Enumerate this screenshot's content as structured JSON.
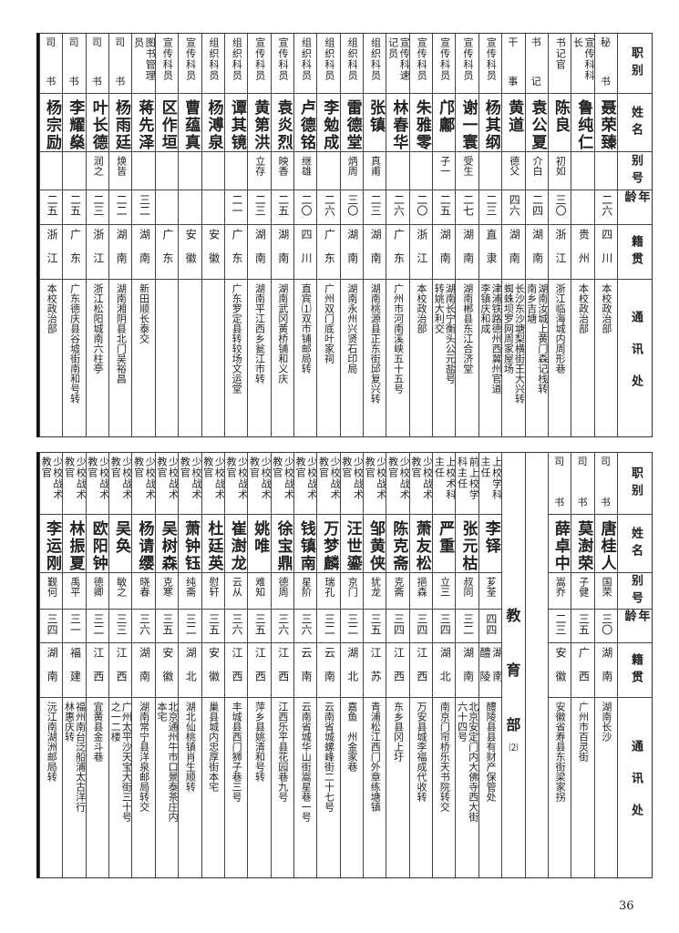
{
  "header": [
    "职别",
    "姓名",
    "别号",
    "年龄",
    "籍贯",
    "通讯处"
  ],
  "top": {
    "columns": [
      {
        "role": [
          "秘",
          "书"
        ],
        "name": "聂荣臻",
        "alias": "",
        "age": "二六",
        "origin": "四川",
        "address": [
          "本校政治部"
        ]
      },
      {
        "role": [
          "宣传科科",
          "长"
        ],
        "name": "鲁纯仁",
        "alias": "",
        "age": "",
        "origin": "贵州",
        "address": [
          "本校政治部"
        ]
      },
      {
        "role": [
          "书记官"
        ],
        "name": "陈良",
        "alias": "初如",
        "age": "三〇",
        "origin": "浙江",
        "address": [
          "浙江临海城内周形巷"
        ]
      },
      {
        "role": [
          "书",
          "记"
        ],
        "name": "袁公夏",
        "alias": "介白",
        "age": "二四",
        "origin": "湖南",
        "address": [
          "湖南汝城上黄门森记栈转",
          "南乡吉塘"
        ]
      },
      {
        "role": [
          "干",
          "事"
        ],
        "name": "黄道",
        "alias": "德父",
        "age": "四六",
        "origin": "湖南",
        "address": [
          "长沙东沙塘梨横街王大兴转",
          "蜘蛛坝罗网周家屋场"
        ]
      },
      {
        "role": [
          "宣传科员"
        ],
        "name": "杨其纲",
        "alias": "",
        "age": "二三",
        "origin": "直隶",
        "address": [
          "津浦铁路德州西冀州官道",
          "李镇庆和成"
        ]
      },
      {
        "role": [
          "宣传科员"
        ],
        "name": "谢一寰",
        "alias": "受生",
        "age": "二七",
        "origin": "湖南",
        "address": [
          "湖南郴县东江合济堂"
        ]
      },
      {
        "role": [
          "宣传科员"
        ],
        "name": "邝鄘",
        "alias": "子一",
        "age": "二五",
        "origin": "湖南",
        "address": [
          "湖南长宁衡头公元盐号",
          "转姚大利交"
        ]
      },
      {
        "role": [
          "宣传科员"
        ],
        "name": "朱雅零",
        "alias": "",
        "age": "二〇",
        "origin": "浙江",
        "address": [
          "本校政治部"
        ]
      },
      {
        "role": [
          "宣传科速",
          "记员"
        ],
        "name": "林春华",
        "alias": "",
        "age": "二六",
        "origin": "广东",
        "address": [
          "广州市河南溪峡五十五号"
        ]
      },
      {
        "role": [
          "组织科员"
        ],
        "name": "张镇",
        "alias": "真甫",
        "age": "二三",
        "origin": "湖南",
        "address": [
          "湖南桃源县正东街邱复兴转"
        ]
      },
      {
        "role": [
          "组织科员"
        ],
        "name": "雷德堂",
        "alias": "炳周",
        "age": "三〇",
        "origin": "湖南",
        "address": [
          "湖南永州兴贤石印局"
        ]
      },
      {
        "role": [
          "组织科员"
        ],
        "name": "李勉成",
        "alias": "",
        "age": "二六",
        "origin": "广东",
        "address": [
          "广州双门底叶家祠"
        ]
      },
      {
        "role": [
          "组织科员"
        ],
        "name": "卢德铭",
        "alias": "继雄",
        "age": "二〇",
        "origin": "四川",
        "address": [
          "直宾⑴双市铺邮局转"
        ]
      },
      {
        "role": [
          "宣传科员"
        ],
        "name": "袁炎烈",
        "alias": "映香",
        "age": "二五",
        "origin": "湖南",
        "address": [
          "湖南武冈黄桥铺和义庆"
        ]
      },
      {
        "role": [
          "宣传科员"
        ],
        "name": "黄第洪",
        "alias": "立存",
        "age": "二三",
        "origin": "湖南",
        "address": [
          "湖南平江西乡瓮江市转"
        ]
      },
      {
        "role": [
          "组织科员"
        ],
        "name": "谭其镜",
        "alias": "",
        "age": "二一",
        "origin": "广东",
        "address": [
          "广东罗定县转较场文运堂"
        ]
      },
      {
        "role": [
          "组织科员"
        ],
        "name": "杨溥泉",
        "alias": "",
        "age": "",
        "origin": "安徽",
        "address": []
      },
      {
        "role": [
          "宣传科员"
        ],
        "name": "曹蕴真",
        "alias": "",
        "age": "",
        "origin": "安徽",
        "address": []
      },
      {
        "role": [
          "宣传科员"
        ],
        "name": "区作垣",
        "alias": "",
        "age": "",
        "origin": "广东",
        "address": []
      },
      {
        "role": [
          "图书管理",
          "员"
        ],
        "name": "蒋先泽",
        "alias": "",
        "age": "三二",
        "origin": "湖南",
        "address": [
          "新田顺长泰交"
        ]
      },
      {
        "role": [
          "司",
          "书"
        ],
        "name": "杨雨廷",
        "alias": "焕皆",
        "age": "二二",
        "origin": "湖南",
        "address": [
          "湖南湘阴县北门吴裕昌"
        ]
      },
      {
        "role": [
          "司",
          "书"
        ],
        "name": "叶长德",
        "alias": "润之",
        "age": "二三",
        "origin": "浙江",
        "address": [
          "浙江松阳城南六柱亭"
        ]
      },
      {
        "role": [
          "司",
          "书"
        ],
        "name": "李耀燊",
        "alias": "",
        "age": "二五",
        "origin": "广东",
        "address": [
          "广东德庆县谷墟街南和号转"
        ]
      },
      {
        "role": [
          "司",
          "书"
        ],
        "name": "杨宗励",
        "alias": "",
        "age": "二五",
        "origin": "浙江",
        "address": [
          "本校政治部"
        ]
      }
    ]
  },
  "bottom": {
    "clerks": [
      {
        "role": [
          "司",
          "书"
        ],
        "name": "唐桂人",
        "alias": "国荣",
        "age": "三〇",
        "origin": "湖南",
        "address": [
          "湖南长沙"
        ]
      },
      {
        "role": [
          "司",
          "书"
        ],
        "name": "莫澍荣",
        "alias": "子健",
        "age": "三五",
        "origin": "广西",
        "address": [
          "广州市百灵街"
        ]
      },
      {
        "role": [
          "司",
          "书"
        ],
        "name": "薛卓中",
        "alias": "嵩乔",
        "age": "二三",
        "origin": "安徽",
        "address": [
          "安徽省寿县东街梁家拐"
        ]
      }
    ],
    "section_label": [
      "教",
      "育",
      "部"
    ],
    "section_note": "⑵",
    "columns": [
      {
        "role": [
          "上校学科",
          "主任"
        ],
        "name": "李铎",
        "alias": "芗荃",
        "age": "四四",
        "origin": "湖南醴陵",
        "address": [
          "醴陵县县有财产保管处"
        ]
      },
      {
        "role": [
          "前上校学",
          "科主任"
        ],
        "name": "张元枯",
        "alias": "叔同",
        "age": "三二",
        "origin": "湖南",
        "address": [
          "北京安定门内大佛寺西大街",
          "六十四号"
        ]
      },
      {
        "role": [
          "上校术科",
          "主任"
        ],
        "name": "严重",
        "alias": "立三",
        "age": "三四",
        "origin": "湖北",
        "address": [
          "南京门帘桥乐天书院转交"
        ]
      },
      {
        "role": [
          "少校战术",
          "教官"
        ],
        "name": "萧友松",
        "alias": "挹森",
        "age": "三四",
        "origin": "江西",
        "address": [
          "万安县城李福成代收转"
        ]
      },
      {
        "role": [
          "少校战术",
          "教官"
        ],
        "name": "陈克斋",
        "alias": "克斋",
        "age": "三四",
        "origin": "江西",
        "address": [
          "东乡县冈上圩"
        ]
      },
      {
        "role": [
          "少校战术",
          "教官"
        ],
        "name": "邹黄侠",
        "alias": "犹龙",
        "age": "三五",
        "origin": "江苏",
        "address": [
          "青浦松江西门外章练塘镇"
        ]
      },
      {
        "role": [
          "少校战术",
          "教官"
        ],
        "name": "汪世鎏",
        "alias": "京门",
        "age": "三二",
        "origin": "湖北",
        "address": [
          "嘉鱼　州金家巷"
        ]
      },
      {
        "role": [
          "少校战术",
          "教官"
        ],
        "name": "万梦麟",
        "alias": "瑞孔",
        "age": "三二",
        "origin": "云南",
        "address": [
          "云南省城螺峰街二十七号"
        ]
      },
      {
        "role": [
          "少校战术",
          "教官"
        ],
        "name": "钱镇南",
        "alias": "星阶",
        "age": "三六",
        "origin": "云南",
        "address": [
          "云南省城华山街嵩星巷一号"
        ]
      },
      {
        "role": [
          "少校战术",
          "教官"
        ],
        "name": "徐宝鼎",
        "alias": "德周",
        "age": "三六",
        "origin": "江西",
        "address": [
          "江西乐平县花园巷九号"
        ]
      },
      {
        "role": [
          "少校战术",
          "教官"
        ],
        "name": "姚唯",
        "alias": "难知",
        "age": "三五",
        "origin": "江西",
        "address": [
          "萍乡县姚清和号转"
        ]
      },
      {
        "role": [
          "少校战术",
          "教官"
        ],
        "name": "崔澍龙",
        "alias": "云从",
        "age": "三六",
        "origin": "江西",
        "address": [
          "丰城县西门狮子巷三号"
        ]
      },
      {
        "role": [
          "少校战术",
          "教官"
        ],
        "name": "杜廷英",
        "alias": "慰轩",
        "age": "三五",
        "origin": "安徽",
        "address": [
          "巢县城内忠厚街本宅"
        ]
      },
      {
        "role": [
          "少校战术",
          "教官"
        ],
        "name": "萧钟钰",
        "alias": "纯斋",
        "age": "三二",
        "origin": "湖北",
        "address": [
          "湖北仙桃镇肖生顺转"
        ]
      },
      {
        "role": [
          "少校战术",
          "教官"
        ],
        "name": "吴树森",
        "alias": "克寒",
        "age": "三五",
        "origin": "安徽",
        "address": [
          "北京通州牛市口景泰茶庄内",
          "本宅"
        ]
      },
      {
        "role": [
          "少校战术",
          "教官"
        ],
        "name": "杨请缨",
        "alias": "晓春",
        "age": "三六",
        "origin": "湖南",
        "address": [
          "湖南常宁县洋泉邮局转交"
        ]
      },
      {
        "role": [
          "少校战术",
          "教官"
        ],
        "name": "吴奂",
        "alias": "敏之",
        "age": "三三",
        "origin": "江西",
        "address": [
          "广州太平沙天宝大街三十号",
          "之一二楼"
        ]
      },
      {
        "role": [
          "少校战术",
          "教官"
        ],
        "name": "欧阳钟",
        "alias": "德卿",
        "age": "三二",
        "origin": "江西",
        "address": [
          "宜黄县金斗巷"
        ]
      },
      {
        "role": [
          "少校战术",
          "教官"
        ],
        "name": "林振夏",
        "alias": "禹平",
        "age": "三一",
        "origin": "福建",
        "address": [
          "福州南台泛船浦太古洋行",
          "林惠庆转"
        ]
      },
      {
        "role": [
          "少校战术",
          "教官"
        ],
        "name": "李运刚",
        "alias": "觐何",
        "age": "三四",
        "origin": "湖南",
        "address": [
          "沅江南湖洲邮局转"
        ]
      }
    ]
  },
  "page_number": "36"
}
